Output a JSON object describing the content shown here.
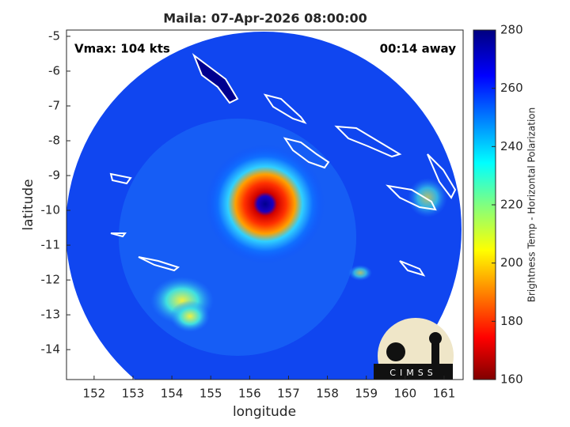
{
  "chart_data": {
    "type": "image",
    "title": "Maila: 07-Apr-2026 08:00:00",
    "annotations": [
      "Vmax: 104 kts",
      "00:14 away"
    ],
    "xlabel": "longitude",
    "ylabel": "latitude",
    "xlim": [
      151.29,
      161.49
    ],
    "xticks": [
      152,
      153,
      154,
      155,
      156,
      157,
      158,
      159,
      160,
      161
    ],
    "ylim": [
      -14.86,
      -4.82
    ],
    "yticks": [
      -14,
      -13,
      -12,
      -11,
      -10,
      -9,
      -8,
      -7,
      -6,
      -5
    ],
    "colorbar": {
      "label": "Brightness Temp - Horizontal Polarization",
      "lim": [
        160,
        280
      ],
      "ticks": [
        160,
        180,
        200,
        220,
        240,
        260,
        280
      ]
    },
    "logo": "CIMSS"
  }
}
